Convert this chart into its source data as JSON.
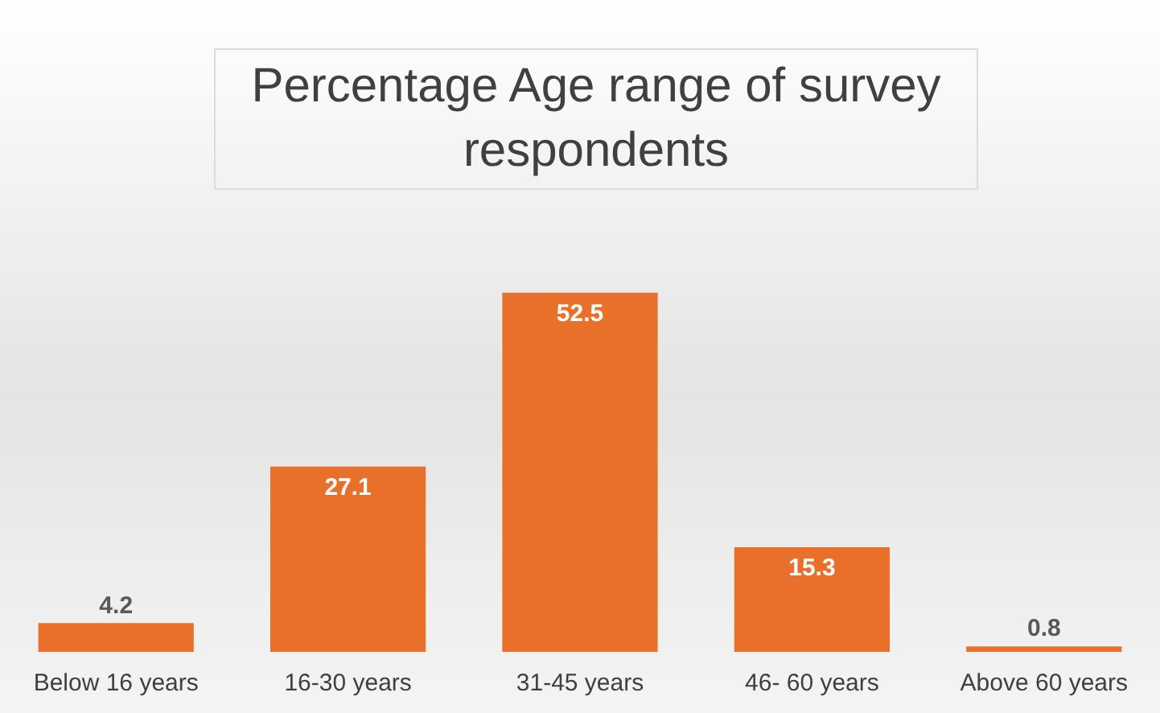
{
  "chart_data": {
    "type": "bar",
    "title": "Percentage Age range of survey respondents",
    "categories": [
      "Below 16 years",
      "16-30 years",
      "31-45 years",
      "46- 60 years",
      "Above 60 years"
    ],
    "values": [
      4.2,
      27.1,
      52.5,
      15.3,
      0.8
    ],
    "color": "#e8702a",
    "data_labels": true,
    "grid": false,
    "legend": false
  }
}
